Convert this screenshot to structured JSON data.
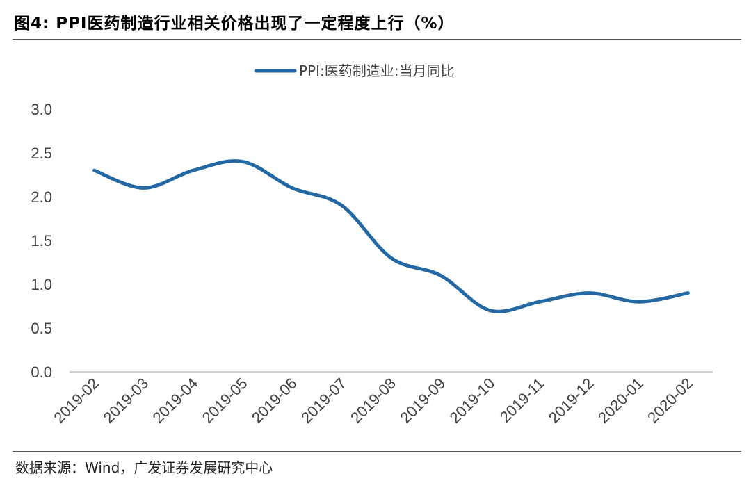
{
  "figure": {
    "title": "图4:  PPI医药制造行业相关价格出现了一定程度上行（%）",
    "source": "数据来源：Wind，广发证券发展研究中心"
  },
  "colors": {
    "series": "#2368A2",
    "axis": "#bfbfbf",
    "text": "#404040"
  },
  "chart_data": {
    "type": "line",
    "title": "图4:  PPI医药制造行业相关价格出现了一定程度上行（%）",
    "xlabel": "",
    "ylabel": "",
    "ylim": [
      0.0,
      3.0
    ],
    "yticks": [
      "0.0",
      "0.5",
      "1.0",
      "1.5",
      "2.0",
      "2.5",
      "3.0"
    ],
    "categories": [
      "2019-02",
      "2019-03",
      "2019-04",
      "2019-05",
      "2019-06",
      "2019-07",
      "2019-08",
      "2019-09",
      "2019-10",
      "2019-11",
      "2019-12",
      "2020-01",
      "2020-02"
    ],
    "series": [
      {
        "name": "PPI:医药制造业:当月同比",
        "values": [
          2.3,
          2.1,
          2.3,
          2.4,
          2.1,
          1.9,
          1.3,
          1.1,
          0.7,
          0.8,
          0.9,
          0.8,
          0.9
        ]
      }
    ],
    "legend": "top-center",
    "grid": false
  }
}
